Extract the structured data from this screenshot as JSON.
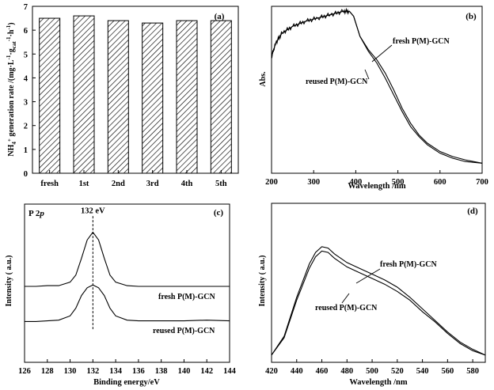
{
  "chart_data": [
    {
      "type": "bar",
      "panel_label": "(a)",
      "categories": [
        "fresh",
        "1st",
        "2nd",
        "3rd",
        "4th",
        "5th"
      ],
      "values": [
        6.5,
        6.6,
        6.4,
        6.3,
        6.4,
        6.4
      ],
      "ylabel": "NH4+ generation rate /(mg·L-1·gcat-1·h-1)",
      "ylim": [
        0,
        7
      ],
      "yticks": [
        "0",
        "1",
        "2",
        "3",
        "4",
        "5",
        "6",
        "7"
      ],
      "bar_fill": "hatched diagonal",
      "grid": false
    },
    {
      "type": "line",
      "panel_label": "(b)",
      "xlabel": "Wavelength /nm",
      "ylabel": "Abs.",
      "xlim": [
        200,
        700
      ],
      "xticks": [
        "200",
        "300",
        "400",
        "500",
        "600",
        "700"
      ],
      "series": [
        {
          "name": "fresh P(M)-GCN",
          "x": [
            200,
            210,
            225,
            250,
            280,
            310,
            340,
            370,
            385,
            395,
            410,
            430,
            450,
            470,
            490,
            510,
            530,
            550,
            570,
            600,
            630,
            660,
            700
          ],
          "y": [
            0.7,
            0.78,
            0.84,
            0.88,
            0.91,
            0.93,
            0.95,
            0.97,
            0.97,
            0.94,
            0.82,
            0.74,
            0.68,
            0.6,
            0.5,
            0.39,
            0.3,
            0.23,
            0.18,
            0.13,
            0.1,
            0.08,
            0.06
          ]
        },
        {
          "name": "reused P(M)-GCN",
          "x": [
            200,
            210,
            225,
            250,
            280,
            310,
            340,
            370,
            385,
            395,
            410,
            430,
            450,
            470,
            490,
            510,
            530,
            550,
            570,
            600,
            630,
            660,
            700
          ],
          "y": [
            0.7,
            0.78,
            0.84,
            0.88,
            0.91,
            0.93,
            0.95,
            0.97,
            0.97,
            0.94,
            0.82,
            0.73,
            0.66,
            0.57,
            0.47,
            0.37,
            0.28,
            0.22,
            0.17,
            0.12,
            0.09,
            0.07,
            0.06
          ]
        }
      ],
      "grid": false
    },
    {
      "type": "line",
      "panel_label": "(c)",
      "title": "P 2p",
      "annotation": "132 eV",
      "xlabel": "Binding energy/eV",
      "ylabel": "Intensity ( a.u.)",
      "xlim": [
        126,
        144
      ],
      "xticks": [
        "126",
        "128",
        "130",
        "132",
        "134",
        "136",
        "138",
        "140",
        "142",
        "144"
      ],
      "series": [
        {
          "name": "fresh P(M)-GCN",
          "x": [
            126,
            127,
            128,
            129,
            130,
            130.5,
            131,
            131.5,
            132,
            132.5,
            133,
            133.5,
            134,
            135,
            136,
            138,
            140,
            142,
            144
          ],
          "y": [
            0.18,
            0.18,
            0.19,
            0.19,
            0.24,
            0.34,
            0.58,
            0.84,
            0.95,
            0.84,
            0.58,
            0.34,
            0.24,
            0.19,
            0.18,
            0.18,
            0.18,
            0.18,
            0.18
          ]
        },
        {
          "name": "reused P(M)-GCN",
          "x": [
            126,
            127,
            128,
            129,
            130,
            130.5,
            131,
            131.5,
            132,
            132.5,
            133,
            133.5,
            134,
            135,
            136,
            138,
            140,
            142,
            144
          ],
          "y": [
            -0.32,
            -0.32,
            -0.31,
            -0.3,
            -0.24,
            -0.13,
            0.05,
            0.16,
            0.2,
            0.16,
            0.05,
            -0.13,
            -0.24,
            -0.3,
            -0.31,
            -0.31,
            -0.31,
            -0.3,
            -0.31
          ]
        }
      ],
      "grid": false
    },
    {
      "type": "line",
      "panel_label": "(d)",
      "xlabel": "Wavelength /nm",
      "ylabel": "Intensity ( a.u.)",
      "xlim": [
        420,
        590
      ],
      "xticks": [
        "420",
        "440",
        "460",
        "480",
        "500",
        "520",
        "540",
        "560",
        "580"
      ],
      "series": [
        {
          "name": "fresh P(M)-GCN",
          "x": [
            420,
            430,
            440,
            450,
            455,
            460,
            465,
            470,
            480,
            490,
            500,
            510,
            520,
            530,
            540,
            550,
            560,
            570,
            580,
            590
          ],
          "y": [
            0.05,
            0.18,
            0.45,
            0.68,
            0.76,
            0.8,
            0.79,
            0.75,
            0.69,
            0.65,
            0.61,
            0.57,
            0.52,
            0.45,
            0.37,
            0.29,
            0.21,
            0.14,
            0.09,
            0.05
          ]
        },
        {
          "name": "reused P(M)-GCN",
          "x": [
            420,
            430,
            440,
            450,
            455,
            460,
            465,
            470,
            480,
            490,
            500,
            510,
            520,
            530,
            540,
            550,
            560,
            570,
            580,
            590
          ],
          "y": [
            0.05,
            0.17,
            0.43,
            0.65,
            0.73,
            0.77,
            0.76,
            0.72,
            0.66,
            0.62,
            0.58,
            0.54,
            0.49,
            0.43,
            0.35,
            0.28,
            0.2,
            0.13,
            0.08,
            0.05
          ]
        }
      ],
      "grid": false
    }
  ]
}
